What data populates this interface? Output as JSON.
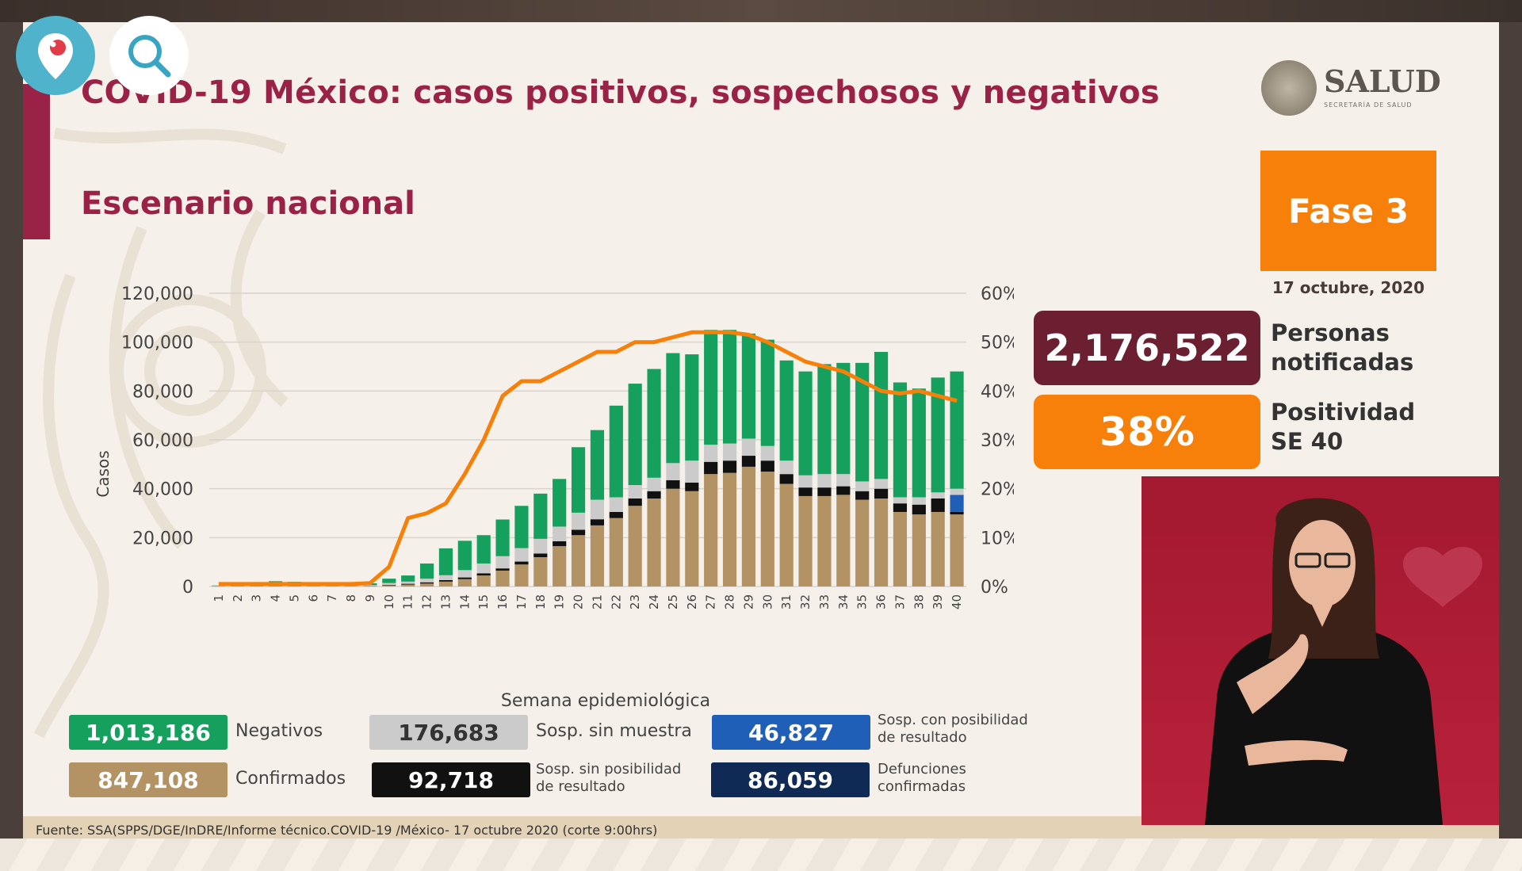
{
  "header": {
    "title": "COVID-19 México: casos positivos, sospechosos y negativos",
    "subtitle": "Escenario nacional"
  },
  "logo": {
    "name": "SALUD",
    "sub": "SECRETARÍA DE SALUD"
  },
  "fase": {
    "label": "Fase 3",
    "date": "17 octubre, 2020"
  },
  "indicators": {
    "notificadas_value": "2,176,522",
    "notificadas_line1": "Personas",
    "notificadas_line2": "notificadas",
    "positividad_value": "38%",
    "positividad_line1": "Positividad",
    "positividad_line2": "SE 40"
  },
  "summary": {
    "negativos_value": "1,013,186",
    "negativos_label": "Negativos",
    "confirmados_value": "847,108",
    "confirmados_label": "Confirmados",
    "sin_muestra_value": "176,683",
    "sin_muestra_label": "Sosp. sin muestra",
    "sin_posibilidad_value": "92,718",
    "sin_posibilidad_label_1": "Sosp. sin posibilidad",
    "sin_posibilidad_label_2": "de resultado",
    "con_posibilidad_value": "46,827",
    "con_posibilidad_label_1": "Sosp. con posibilidad",
    "con_posibilidad_label_2": "de resultado",
    "defunciones_value": "86,059",
    "defunciones_label_1": "Defunciones",
    "defunciones_label_2": "confirmadas"
  },
  "source": "Fuente: SSA(SPPS/DGE/InDRE/Informe técnico.COVID-19 /México- 17 octubre 2020 (corte 9:00hrs)",
  "colors": {
    "wine": "#9b2247",
    "orange": "#f7800a",
    "green": "#16a05d",
    "tan": "#b39364",
    "gray": "#cbcbcb",
    "black": "#111111",
    "blue": "#1f5fb8",
    "navy": "#0f2a55",
    "dark_wine": "#6b1f31"
  },
  "icons": {
    "pin": "periscope-pin-icon",
    "search": "search-icon"
  },
  "chart_data": {
    "type": "bar",
    "stacked": true,
    "xlabel": "Semana epidemiológica",
    "ylabel": "Casos",
    "ylim": [
      0,
      120000
    ],
    "yticks": [
      "0",
      "20,000",
      "40,000",
      "60,000",
      "80,000",
      "100,000",
      "120,000"
    ],
    "y2lim": [
      0,
      0.6
    ],
    "y2ticks": [
      "0%",
      "10%",
      "20%",
      "30%",
      "40%",
      "50%",
      "60%"
    ],
    "grid": true,
    "categories": [
      "1",
      "2",
      "3",
      "4",
      "5",
      "6",
      "7",
      "8",
      "9",
      "10",
      "11",
      "12",
      "13",
      "14",
      "15",
      "16",
      "17",
      "18",
      "19",
      "20",
      "21",
      "22",
      "23",
      "24",
      "25",
      "26",
      "27",
      "28",
      "29",
      "30",
      "31",
      "32",
      "33",
      "34",
      "35",
      "36",
      "37",
      "38",
      "39",
      "40"
    ],
    "series": [
      {
        "key": "confirmados",
        "color": "#b39364",
        "values": [
          100,
          200,
          300,
          350,
          300,
          250,
          250,
          250,
          300,
          500,
          800,
          1200,
          2000,
          3000,
          4500,
          6500,
          9000,
          12000,
          16500,
          21000,
          25000,
          28000,
          33000,
          36000,
          40000,
          39000,
          46000,
          46500,
          49000,
          47000,
          42000,
          37000,
          37000,
          37500,
          35500,
          36000,
          30500,
          29500,
          30500,
          29500
        ]
      },
      {
        "key": "sin_posibilidad",
        "color": "#111111",
        "values": [
          0,
          0,
          0,
          0,
          0,
          0,
          0,
          0,
          0,
          200,
          300,
          500,
          600,
          700,
          900,
          900,
          1200,
          1500,
          2000,
          2200,
          2500,
          2500,
          3000,
          3000,
          3500,
          3500,
          5000,
          5000,
          4500,
          4500,
          4000,
          3500,
          3500,
          3500,
          3500,
          4000,
          3500,
          4000,
          5500,
          1000
        ]
      },
      {
        "key": "con_posibilidad",
        "color": "#1f5fb8",
        "values": [
          0,
          0,
          0,
          0,
          0,
          0,
          0,
          0,
          0,
          0,
          0,
          0,
          0,
          0,
          0,
          0,
          0,
          0,
          0,
          0,
          0,
          0,
          0,
          0,
          0,
          0,
          0,
          0,
          0,
          0,
          0,
          0,
          0,
          0,
          0,
          0,
          0,
          0,
          0,
          7000
        ]
      },
      {
        "key": "sin_muestra",
        "color": "#cbcbcb",
        "values": [
          100,
          100,
          200,
          200,
          200,
          200,
          200,
          200,
          300,
          700,
          900,
          1500,
          2000,
          3000,
          4000,
          5000,
          5500,
          6000,
          6000,
          7000,
          8000,
          6000,
          5500,
          5500,
          7000,
          9000,
          7000,
          7000,
          7000,
          6000,
          5500,
          5000,
          5500,
          5000,
          4000,
          4000,
          2500,
          3000,
          2500,
          2500
        ]
      },
      {
        "key": "negativos",
        "color": "#16a05d",
        "values": [
          200,
          1000,
          1300,
          1600,
          1400,
          1300,
          1300,
          1300,
          700,
          1800,
          2500,
          6200,
          11000,
          12000,
          11600,
          15000,
          17300,
          18500,
          19500,
          26800,
          28500,
          37500,
          41500,
          44500,
          45000,
          43500,
          47000,
          46500,
          43000,
          43500,
          41000,
          42500,
          45000,
          45500,
          48500,
          52000,
          47000,
          44500,
          47000,
          48000
        ]
      }
    ],
    "line": {
      "key": "positividad",
      "color": "#f7800a",
      "axis": "y2",
      "values": [
        0.005,
        0.005,
        0.005,
        0.005,
        0.005,
        0.005,
        0.005,
        0.005,
        0.007,
        0.04,
        0.14,
        0.15,
        0.17,
        0.23,
        0.3,
        0.39,
        0.42,
        0.42,
        0.44,
        0.46,
        0.48,
        0.48,
        0.5,
        0.5,
        0.51,
        0.52,
        0.52,
        0.52,
        0.515,
        0.5,
        0.48,
        0.46,
        0.45,
        0.44,
        0.42,
        0.4,
        0.395,
        0.4,
        0.39,
        0.38
      ]
    }
  }
}
